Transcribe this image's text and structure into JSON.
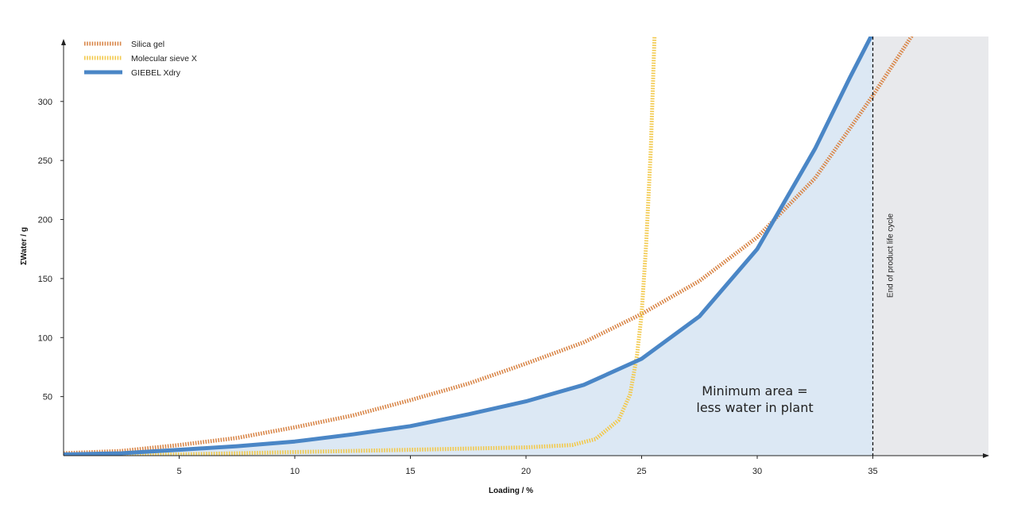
{
  "chart_data": {
    "type": "area",
    "title": "",
    "xlabel": "Loading / %",
    "ylabel": "ΣWater / g",
    "xlim": [
      0,
      40
    ],
    "ylim": [
      0,
      355
    ],
    "x_ticks": [
      5,
      10,
      15,
      20,
      25,
      30,
      35
    ],
    "y_ticks": [
      50,
      100,
      150,
      200,
      250,
      300
    ],
    "grid": false,
    "legend_position": "top-left",
    "colors": {
      "silica": "#d9874a",
      "sieve": "#f2c94c",
      "giebel": "#4a86c6",
      "area_fill": "#dce8f4",
      "shade": "#e8e9ec"
    },
    "series": [
      {
        "name": "Silica gel",
        "style": "dotted",
        "x": [
          0,
          2.5,
          5,
          7.5,
          10,
          12.5,
          15,
          17.5,
          20,
          22.5,
          25,
          27.5,
          30,
          32.5,
          35,
          37,
          38.5
        ],
        "y": [
          2,
          4,
          9,
          15,
          24,
          34,
          47,
          61,
          78,
          96,
          120,
          148,
          185,
          235,
          305,
          365,
          420
        ]
      },
      {
        "name": "Molecular sieve X",
        "style": "dotted",
        "x": [
          0,
          5,
          10,
          15,
          20,
          22,
          23,
          24,
          24.5,
          24.8,
          25,
          25.2,
          25.4,
          25.5,
          25.6
        ],
        "y": [
          0,
          1,
          3,
          5,
          7,
          9,
          14,
          30,
          52,
          85,
          120,
          180,
          260,
          320,
          380
        ]
      },
      {
        "name": "GIEBEL Xdry",
        "style": "solid",
        "x": [
          0,
          2.5,
          5,
          7.5,
          10,
          12.5,
          15,
          17.5,
          20,
          22.5,
          25,
          27.5,
          30,
          32.5,
          34,
          35
        ],
        "y": [
          1,
          2,
          5,
          8,
          12,
          18,
          25,
          35,
          46,
          60,
          82,
          118,
          175,
          260,
          320,
          358
        ]
      }
    ],
    "shaded_region": {
      "x_from": 35,
      "x_to": 40
    },
    "vertical_line": {
      "x": 35,
      "label": "End of product life cycle"
    },
    "annotation": {
      "line1": "Minimum area =",
      "line2": "less water in plant",
      "x": 30,
      "y": 48
    }
  }
}
